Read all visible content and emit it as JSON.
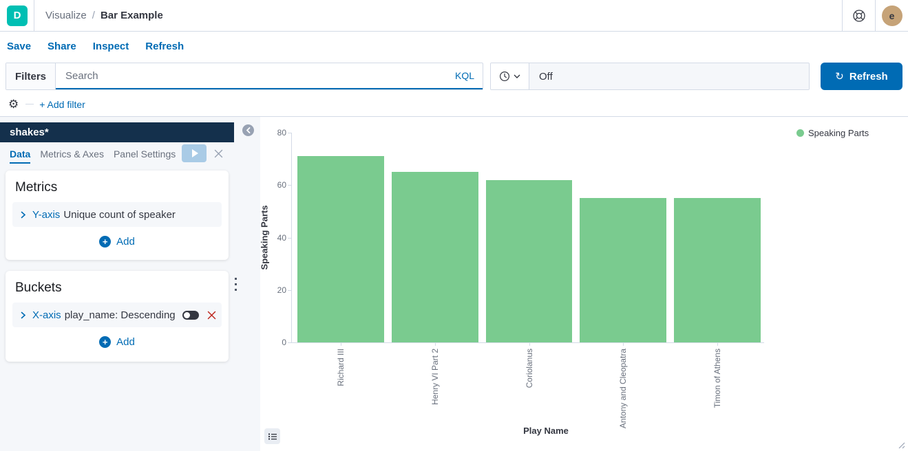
{
  "header": {
    "logo_letter": "D",
    "breadcrumb": {
      "section": "Visualize",
      "separator": "/",
      "current": "Bar Example"
    },
    "avatar_letter": "e"
  },
  "toolbar": {
    "items": [
      "Save",
      "Share",
      "Inspect",
      "Refresh"
    ]
  },
  "query_bar": {
    "filters_label": "Filters",
    "search_placeholder": "Search",
    "kql_label": "KQL",
    "time_value": "Off",
    "refresh_label": "Refresh",
    "refresh_icon": "↻"
  },
  "filter_row": {
    "add_filter_label": "+ Add filter",
    "gear_icon": "⚙"
  },
  "sidebar": {
    "index_pattern": "shakes*",
    "tabs": [
      {
        "label": "Data"
      },
      {
        "label": "Metrics & Axes"
      },
      {
        "label": "Panel Settings"
      }
    ],
    "metrics": {
      "title": "Metrics",
      "rows": [
        {
          "axis": "Y-axis",
          "label": "Unique count of speaker"
        }
      ],
      "add_label": "Add",
      "plus": "+"
    },
    "buckets": {
      "title": "Buckets",
      "rows": [
        {
          "axis": "X-axis",
          "label": "play_name: Descending"
        }
      ],
      "add_label": "Add",
      "plus": "+"
    }
  },
  "chart_data": {
    "type": "bar",
    "title": "",
    "categories": [
      "Richard III",
      "Henry VI Part 2",
      "Coriolanus",
      "Antony and Cleopatra",
      "Timon of Athens"
    ],
    "series": [
      {
        "name": "Speaking Parts",
        "values": [
          71,
          65,
          62,
          55,
          55
        ]
      }
    ],
    "xlabel": "Play Name",
    "ylabel": "Speaking Parts",
    "ylim": [
      0,
      80
    ],
    "yticks": [
      0,
      20,
      40,
      60,
      80
    ],
    "grid": false,
    "legend_position": "top-right",
    "bar_color": "#7ACB8F"
  },
  "colors": {
    "accent": "#006BB4",
    "logo_teal": "#00BFB3",
    "navy_header": "#14304C",
    "bar_green": "#7ACB8F",
    "danger_red": "#BD271E",
    "light_bg": "#F5F7FA",
    "border": "#D3DAE6"
  }
}
